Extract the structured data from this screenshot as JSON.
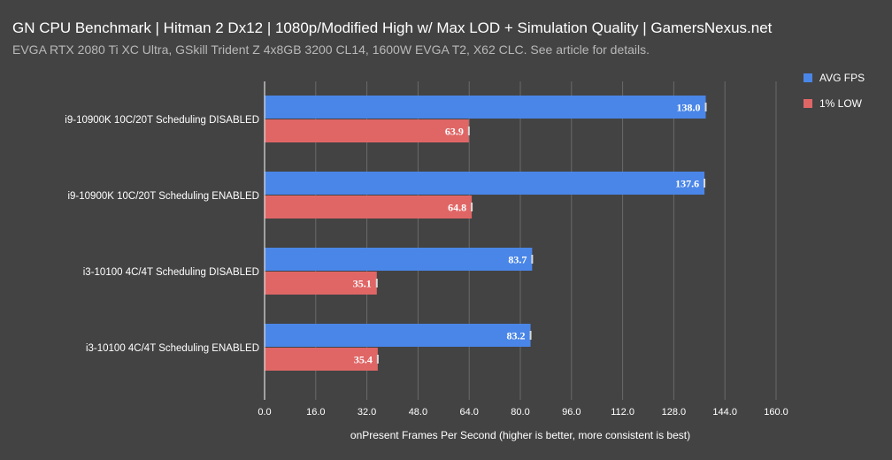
{
  "chart_data": {
    "type": "bar",
    "orientation": "horizontal",
    "title": "GN CPU Benchmark | Hitman 2 Dx12 | 1080p/Modified High w/ Max LOD + Simulation Quality | GamersNexus.net",
    "subtitle": "EVGA RTX 2080 Ti XC Ultra, GSkill Trident Z 4x8GB 3200 CL14, 1600W EVGA T2, X62 CLC. See article for details.",
    "xlabel": "onPresent Frames Per Second (higher is better, more consistent is best)",
    "ylabel": "",
    "xlim": [
      0,
      160
    ],
    "xticks": [
      "0.0",
      "16.0",
      "32.0",
      "48.0",
      "64.0",
      "80.0",
      "96.0",
      "112.0",
      "128.0",
      "144.0",
      "160.0"
    ],
    "xtick_values": [
      0,
      16,
      32,
      48,
      64,
      80,
      96,
      112,
      128,
      144,
      160
    ],
    "grid": true,
    "legend_position": "top-right",
    "categories": [
      "i9-10900K 10C/20T Scheduling DISABLED",
      "i9-10900K 10C/20T Scheduling ENABLED",
      "i3-10100 4C/4T Scheduling DISABLED",
      "i3-10100 4C/4T Scheduling ENABLED"
    ],
    "series": [
      {
        "name": "AVG FPS",
        "color": "#4a86e8",
        "values": [
          138.0,
          137.6,
          83.7,
          83.2
        ],
        "labels": [
          "138.0",
          "137.6",
          "83.7",
          "83.2"
        ]
      },
      {
        "name": "1% LOW",
        "color": "#e06666",
        "values": [
          63.9,
          64.8,
          35.1,
          35.4
        ],
        "labels": [
          "63.9",
          "64.8",
          "35.1",
          "35.4"
        ]
      }
    ]
  }
}
